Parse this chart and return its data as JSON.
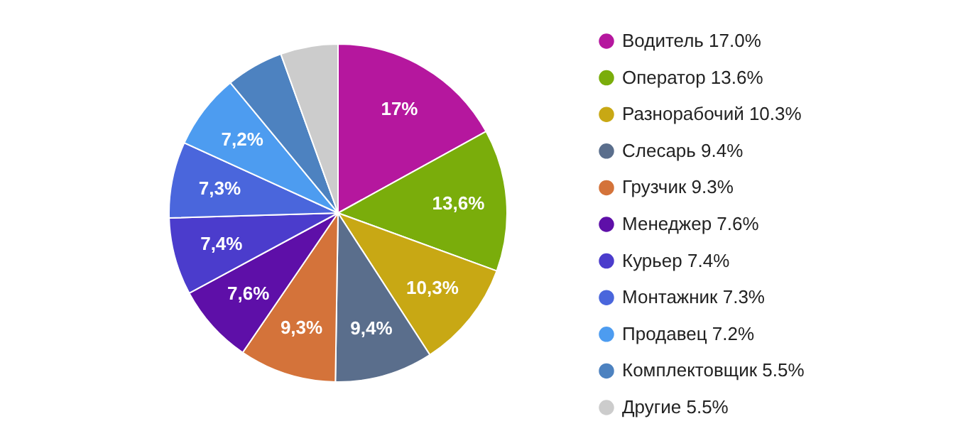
{
  "chart_data": {
    "type": "pie",
    "categories": [
      "Водитель 17.0%",
      "Оператор 13.6%",
      "Разнорабочий 10.3%",
      "Слесарь 9.4%",
      "Грузчик 9.3%",
      "Менеджер 7.6%",
      "Курьер 7.4%",
      "Монтажник 7.3%",
      "Продавец 7.2%",
      "Комплектовщик 5.5%",
      "Другие 5.5%"
    ],
    "values": [
      17.0,
      13.6,
      10.3,
      9.4,
      9.3,
      7.6,
      7.4,
      7.3,
      7.2,
      5.5,
      5.5
    ],
    "colors": [
      "#b5179e",
      "#7aad0b",
      "#c8a814",
      "#5a6e8c",
      "#d4733a",
      "#5e0fa8",
      "#4b3ccc",
      "#4a66dc",
      "#4d9cf0",
      "#4d82c0",
      "#cccccc"
    ],
    "value_labels": [
      "17%",
      "13,6%",
      "10,3%",
      "9,4%",
      "9,3%",
      "7,6%",
      "7,4%",
      "7,3%",
      "7,2%",
      null,
      null
    ],
    "legend": "right"
  }
}
